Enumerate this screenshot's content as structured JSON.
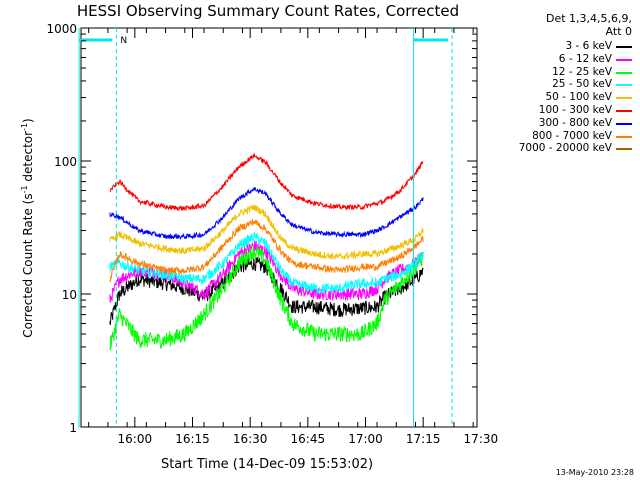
{
  "chart_data": {
    "type": "line",
    "title": "HESSI Observing Summary Count Rates, Corrected",
    "xlabel": "Start Time (14-Dec-09 15:53:02)",
    "ylabel_main": "Corrected Count Rate (s",
    "ylabel_sup1": "-1",
    "ylabel_mid": " detector",
    "ylabel_sup2": "-1",
    "ylabel_end": ")",
    "y_scale": "log",
    "ylim": [
      1,
      1000
    ],
    "y_ticks": [
      {
        "value": 1,
        "label": "1"
      },
      {
        "value": 10,
        "label": "10"
      },
      {
        "value": 100,
        "label": "100"
      },
      {
        "value": 1000,
        "label": "1000"
      }
    ],
    "x_range_minutes": [
      -7,
      96
    ],
    "x_ticks": [
      {
        "value": 7,
        "label": "16:00"
      },
      {
        "value": 22,
        "label": "16:15"
      },
      {
        "value": 37,
        "label": "16:30"
      },
      {
        "value": 52,
        "label": "16:45"
      },
      {
        "value": 67,
        "label": "17:00"
      },
      {
        "value": 82,
        "label": "17:15"
      },
      {
        "value": 97,
        "label": "17:30"
      }
    ],
    "legend_title": [
      "Det 1,3,4,5,6,9,",
      "Att 0"
    ],
    "legend_placement": "right, outside plot",
    "night_markers": {
      "start": -7.5,
      "end": 2.2,
      "label": "N"
    },
    "night_markers_2": {
      "start": 79.5,
      "end": 89.5
    },
    "series": [
      {
        "name": "3 - 6 keV",
        "color": "#000000",
        "key": [
          [
            0.5,
            6.0
          ],
          [
            3,
            10
          ],
          [
            8,
            13
          ],
          [
            15,
            12
          ],
          [
            20,
            11
          ],
          [
            25,
            9.5
          ],
          [
            30,
            12
          ],
          [
            34,
            16
          ],
          [
            38,
            17
          ],
          [
            41,
            16
          ],
          [
            45,
            11
          ],
          [
            48,
            8
          ],
          [
            54,
            8
          ],
          [
            60,
            7.6
          ],
          [
            66,
            7.8
          ],
          [
            70,
            8
          ],
          [
            72,
            9.5
          ],
          [
            76,
            11
          ],
          [
            80,
            13
          ],
          [
            82,
            15
          ]
        ]
      },
      {
        "name": "6 - 12 keV",
        "color": "#ff00ff",
        "key": [
          [
            0.5,
            9
          ],
          [
            3,
            13
          ],
          [
            8,
            15
          ],
          [
            15,
            14
          ],
          [
            20,
            12
          ],
          [
            25,
            10
          ],
          [
            30,
            14
          ],
          [
            34,
            20
          ],
          [
            38,
            23
          ],
          [
            41,
            21
          ],
          [
            45,
            14
          ],
          [
            48,
            11
          ],
          [
            54,
            10
          ],
          [
            60,
            10
          ],
          [
            66,
            10
          ],
          [
            70,
            11
          ],
          [
            72,
            13
          ],
          [
            76,
            15
          ],
          [
            80,
            17
          ],
          [
            82,
            20
          ]
        ]
      },
      {
        "name": "12 - 25 keV",
        "color": "#00ff00",
        "key": [
          [
            0.5,
            4
          ],
          [
            3,
            7
          ],
          [
            8,
            4.5
          ],
          [
            15,
            4.5
          ],
          [
            20,
            5
          ],
          [
            25,
            7
          ],
          [
            30,
            11
          ],
          [
            34,
            17
          ],
          [
            38,
            21
          ],
          [
            41,
            18
          ],
          [
            45,
            9
          ],
          [
            48,
            6
          ],
          [
            54,
            5
          ],
          [
            60,
            5
          ],
          [
            66,
            5
          ],
          [
            70,
            6
          ],
          [
            72,
            9
          ],
          [
            76,
            12
          ],
          [
            80,
            16
          ],
          [
            82,
            19
          ]
        ]
      },
      {
        "name": "25 - 50 keV",
        "color": "#00ffff",
        "key": [
          [
            0.5,
            16
          ],
          [
            3,
            17
          ],
          [
            8,
            15
          ],
          [
            15,
            14
          ],
          [
            20,
            13
          ],
          [
            25,
            13
          ],
          [
            30,
            17
          ],
          [
            34,
            23
          ],
          [
            38,
            27
          ],
          [
            41,
            24
          ],
          [
            45,
            15
          ],
          [
            48,
            12
          ],
          [
            54,
            11
          ],
          [
            60,
            11
          ],
          [
            66,
            12
          ],
          [
            70,
            12
          ],
          [
            72,
            13
          ],
          [
            76,
            14
          ],
          [
            80,
            17
          ],
          [
            82,
            20
          ]
        ]
      },
      {
        "name": "50 - 100 keV",
        "color": "#f0c000",
        "key": [
          [
            0.5,
            25
          ],
          [
            3,
            28
          ],
          [
            8,
            24
          ],
          [
            15,
            22
          ],
          [
            20,
            21
          ],
          [
            25,
            22
          ],
          [
            30,
            30
          ],
          [
            34,
            40
          ],
          [
            38,
            45
          ],
          [
            41,
            40
          ],
          [
            45,
            26
          ],
          [
            48,
            22
          ],
          [
            54,
            20
          ],
          [
            60,
            19
          ],
          [
            66,
            20
          ],
          [
            70,
            20
          ],
          [
            72,
            21
          ],
          [
            76,
            23
          ],
          [
            80,
            26
          ],
          [
            82,
            30
          ]
        ]
      },
      {
        "name": "100 - 300 keV",
        "color": "#ff0000",
        "key": [
          [
            0.5,
            60
          ],
          [
            3,
            70
          ],
          [
            8,
            50
          ],
          [
            15,
            45
          ],
          [
            20,
            44
          ],
          [
            25,
            46
          ],
          [
            30,
            65
          ],
          [
            34,
            90
          ],
          [
            38,
            110
          ],
          [
            41,
            98
          ],
          [
            45,
            68
          ],
          [
            48,
            55
          ],
          [
            54,
            48
          ],
          [
            60,
            45
          ],
          [
            66,
            45
          ],
          [
            70,
            48
          ],
          [
            72,
            50
          ],
          [
            76,
            60
          ],
          [
            80,
            80
          ],
          [
            82,
            100
          ]
        ]
      },
      {
        "name": "300 - 800 keV",
        "color": "#0000ff",
        "key": [
          [
            0.5,
            40
          ],
          [
            3,
            38
          ],
          [
            8,
            30
          ],
          [
            15,
            27
          ],
          [
            20,
            27
          ],
          [
            25,
            28
          ],
          [
            30,
            38
          ],
          [
            34,
            52
          ],
          [
            38,
            62
          ],
          [
            41,
            57
          ],
          [
            45,
            40
          ],
          [
            48,
            33
          ],
          [
            54,
            29
          ],
          [
            60,
            28
          ],
          [
            66,
            28
          ],
          [
            70,
            30
          ],
          [
            72,
            32
          ],
          [
            76,
            38
          ],
          [
            80,
            45
          ],
          [
            82,
            52
          ]
        ]
      },
      {
        "name": "800 - 7000 keV",
        "color": "#ff8000",
        "key": [
          [
            0.5,
            13
          ],
          [
            3,
            20
          ],
          [
            8,
            17
          ],
          [
            15,
            15
          ],
          [
            20,
            15
          ],
          [
            25,
            16
          ],
          [
            30,
            23
          ],
          [
            34,
            31
          ],
          [
            38,
            35
          ],
          [
            41,
            31
          ],
          [
            45,
            21
          ],
          [
            48,
            17
          ],
          [
            54,
            16
          ],
          [
            60,
            15
          ],
          [
            66,
            16
          ],
          [
            70,
            16
          ],
          [
            72,
            17
          ],
          [
            76,
            19
          ],
          [
            80,
            23
          ],
          [
            82,
            26
          ]
        ]
      },
      {
        "name": "7000 - 20000 keV",
        "color": "#a06000",
        "key": []
      }
    ]
  },
  "footer": {
    "datestamp": "13-May-2010 23:28"
  }
}
